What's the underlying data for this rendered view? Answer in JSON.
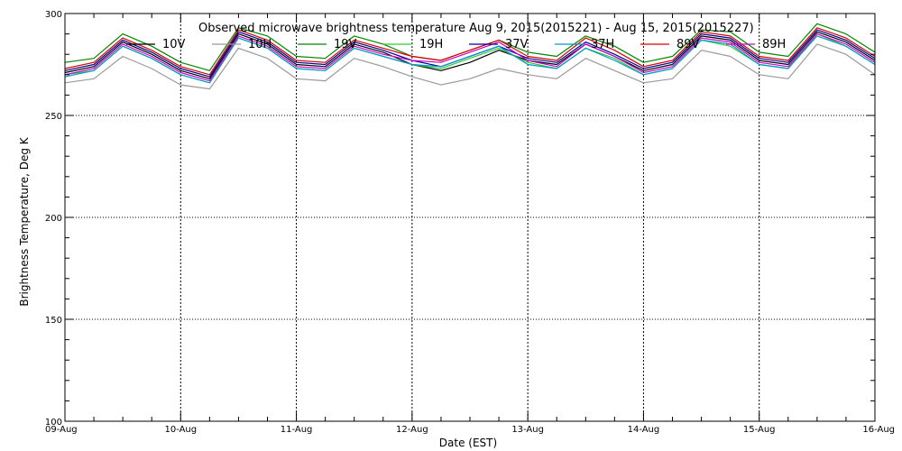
{
  "chart_data": {
    "type": "line",
    "title": "Observed microwave brightness temperature Aug  9, 2015(2015221) - Aug 15, 2015(2015227)",
    "xlabel": "Date (EST)",
    "ylabel": "Brightness Temperature, Deg K",
    "xlim": [
      "2015-08-09",
      "2015-08-16"
    ],
    "ylim": [
      100,
      300
    ],
    "grid": true,
    "legend_position": "top",
    "x_ticks": [
      "09-Aug",
      "10-Aug",
      "11-Aug",
      "12-Aug",
      "13-Aug",
      "14-Aug",
      "15-Aug",
      "16-Aug"
    ],
    "y_ticks": [
      100,
      150,
      200,
      250,
      300
    ],
    "x": [
      "2015-08-09 00:00",
      "2015-08-09 06:00",
      "2015-08-09 12:00",
      "2015-08-09 18:00",
      "2015-08-10 00:00",
      "2015-08-10 06:00",
      "2015-08-10 12:00",
      "2015-08-10 18:00",
      "2015-08-11 00:00",
      "2015-08-11 06:00",
      "2015-08-11 12:00",
      "2015-08-11 18:00",
      "2015-08-12 00:00",
      "2015-08-12 06:00",
      "2015-08-12 12:00",
      "2015-08-12 18:00",
      "2015-08-13 00:00",
      "2015-08-13 06:00",
      "2015-08-13 12:00",
      "2015-08-13 18:00",
      "2015-08-14 00:00",
      "2015-08-14 06:00",
      "2015-08-14 12:00",
      "2015-08-14 18:00",
      "2015-08-15 00:00",
      "2015-08-15 06:00",
      "2015-08-15 12:00",
      "2015-08-15 18:00",
      "2015-08-16 00:00"
    ],
    "series": [
      {
        "name": "10V",
        "color": "#000000",
        "values": [
          271,
          274,
          286,
          280,
          272,
          268,
          290,
          285,
          275,
          274,
          285,
          281,
          275,
          272,
          276,
          282,
          277,
          275,
          285,
          279,
          272,
          275,
          289,
          287,
          277,
          275,
          291,
          286,
          277
        ]
      },
      {
        "name": "10H",
        "color": "#999999",
        "values": [
          266,
          268,
          279,
          273,
          265,
          263,
          283,
          278,
          268,
          267,
          278,
          274,
          269,
          265,
          268,
          273,
          270,
          268,
          278,
          272,
          266,
          268,
          282,
          279,
          270,
          268,
          285,
          280,
          270
        ]
      },
      {
        "name": "19V",
        "color": "#008800",
        "values": [
          276,
          278,
          290,
          284,
          276,
          272,
          293,
          289,
          279,
          278,
          289,
          285,
          279,
          277,
          282,
          287,
          281,
          279,
          289,
          284,
          276,
          279,
          292,
          291,
          281,
          279,
          295,
          290,
          281
        ]
      },
      {
        "name": "19H",
        "color": "#33cc33",
        "values": [
          270,
          272,
          284,
          278,
          270,
          266,
          288,
          283,
          273,
          272,
          283,
          279,
          275,
          273,
          278,
          283,
          276,
          273,
          283,
          278,
          270,
          273,
          287,
          284,
          275,
          273,
          290,
          284,
          275
        ]
      },
      {
        "name": "37V",
        "color": "#000099",
        "values": [
          272,
          275,
          287,
          281,
          273,
          269,
          291,
          286,
          276,
          275,
          286,
          282,
          277,
          274,
          279,
          284,
          278,
          276,
          286,
          280,
          273,
          276,
          290,
          288,
          278,
          276,
          292,
          287,
          278
        ]
      },
      {
        "name": "37H",
        "color": "#0099cc",
        "values": [
          269,
          272,
          284,
          278,
          270,
          266,
          288,
          283,
          273,
          272,
          283,
          279,
          275,
          274,
          279,
          284,
          275,
          273,
          283,
          277,
          270,
          273,
          287,
          285,
          275,
          273,
          289,
          284,
          275
        ]
      },
      {
        "name": "89V",
        "color": "#dd0000",
        "values": [
          273,
          276,
          288,
          282,
          274,
          270,
          292,
          287,
          277,
          276,
          287,
          283,
          279,
          277,
          282,
          287,
          279,
          277,
          288,
          282,
          274,
          277,
          291,
          289,
          279,
          277,
          293,
          288,
          279
        ]
      },
      {
        "name": "89H",
        "color": "#cc00cc",
        "values": [
          270,
          273,
          285,
          279,
          271,
          267,
          289,
          284,
          274,
          273,
          284,
          280,
          277,
          276,
          281,
          286,
          277,
          274,
          285,
          279,
          271,
          274,
          288,
          286,
          276,
          274,
          290,
          285,
          276
        ]
      }
    ]
  }
}
